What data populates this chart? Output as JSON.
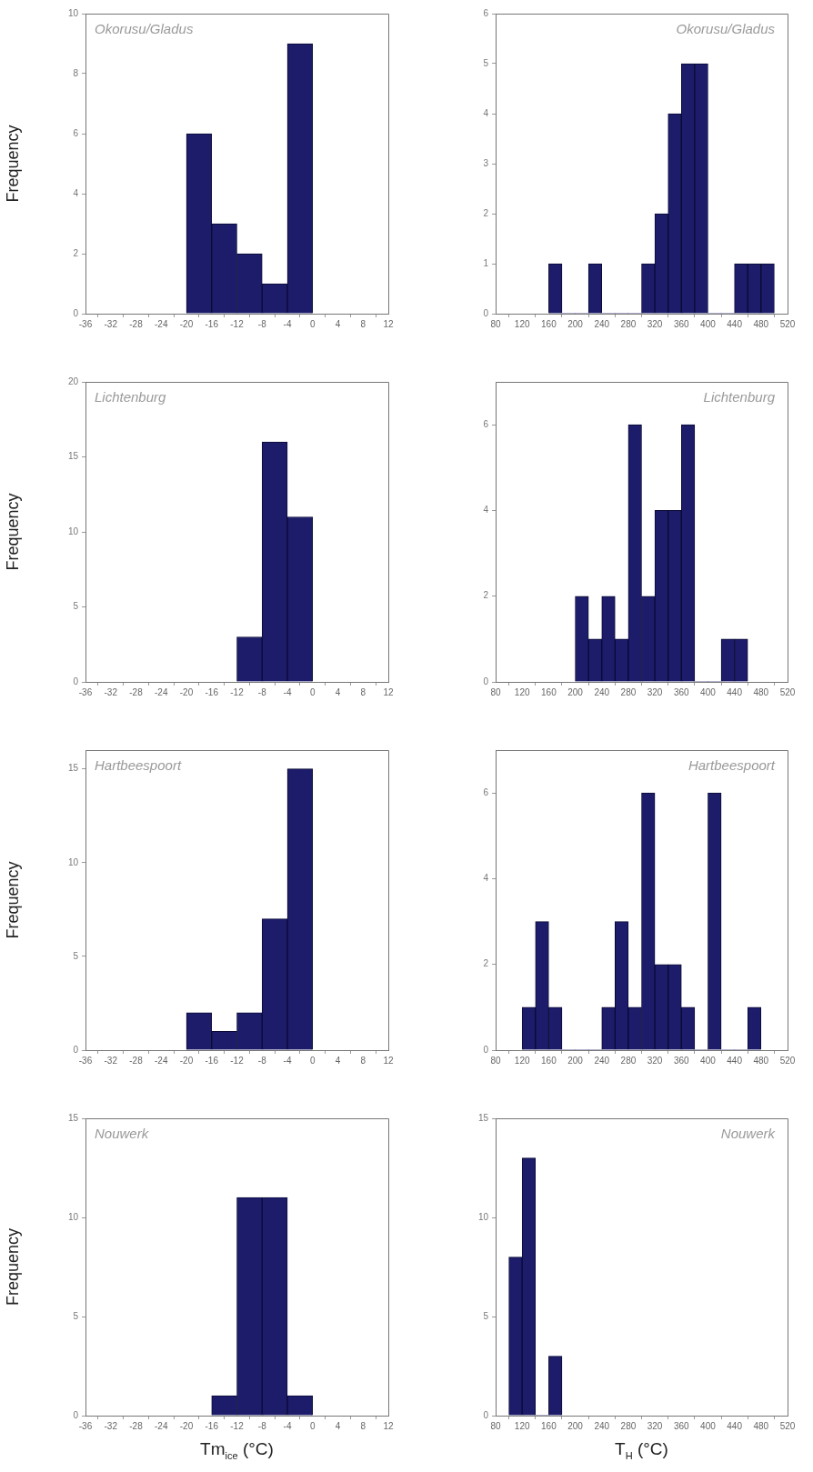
{
  "chart_data": [
    {
      "type": "histogram",
      "annotations": [
        "Okorusu/Gladus"
      ],
      "ylabel": "Frequency",
      "bins": [
        -20,
        -16,
        -12,
        -8,
        -4,
        0
      ],
      "values": [
        6,
        3,
        2,
        1,
        9
      ],
      "color": "#1c1c6b",
      "xlim": [
        -36,
        12
      ],
      "xticks": [
        -36,
        -32,
        -28,
        -24,
        -20,
        -16,
        -12,
        -8,
        -4,
        0,
        4,
        8,
        12
      ],
      "ylim": [
        0,
        10
      ],
      "yticks": [
        0,
        2,
        4,
        6,
        8,
        10
      ]
    },
    {
      "type": "histogram",
      "annotations": [
        "Okorusu/Gladus"
      ],
      "bins": [
        160,
        180,
        200,
        220,
        240,
        260,
        280,
        300,
        320,
        340,
        360,
        380,
        400,
        420,
        440,
        460,
        480,
        500
      ],
      "values": [
        1,
        0,
        0,
        1,
        0,
        0,
        0,
        1,
        2,
        4,
        5,
        5,
        0,
        0,
        1,
        1,
        1
      ],
      "color": "#1c1c6b",
      "xlim": [
        80,
        520
      ],
      "xticks": [
        80,
        120,
        160,
        200,
        240,
        280,
        320,
        360,
        400,
        440,
        480,
        520
      ],
      "ylim": [
        0,
        6
      ],
      "yticks": [
        0,
        1,
        2,
        3,
        4,
        5,
        6
      ]
    },
    {
      "type": "histogram",
      "annotations": [
        "Lichtenburg"
      ],
      "ylabel": "Frequency",
      "bins": [
        -12,
        -8,
        -4,
        0
      ],
      "values": [
        3,
        16,
        11
      ],
      "color": "#1c1c6b",
      "xlim": [
        -36,
        12
      ],
      "xticks": [
        -36,
        -32,
        -28,
        -24,
        -20,
        -16,
        -12,
        -8,
        -4,
        0,
        4,
        8,
        12
      ],
      "ylim": [
        0,
        20
      ],
      "yticks": [
        0,
        5,
        10,
        15,
        20
      ]
    },
    {
      "type": "histogram",
      "annotations": [
        "Lichtenburg"
      ],
      "bins": [
        200,
        220,
        240,
        260,
        280,
        300,
        320,
        340,
        360,
        380,
        400,
        420,
        440,
        460
      ],
      "values": [
        2,
        1,
        2,
        1,
        6,
        2,
        4,
        4,
        6,
        0,
        0,
        1,
        1
      ],
      "color": "#1c1c6b",
      "xlim": [
        80,
        520
      ],
      "xticks": [
        80,
        120,
        160,
        200,
        240,
        280,
        320,
        360,
        400,
        440,
        480,
        520
      ],
      "ylim": [
        0,
        7
      ],
      "yticks": [
        0,
        2,
        4,
        6
      ]
    },
    {
      "type": "histogram",
      "annotations": [
        "Hartbeespoort"
      ],
      "ylabel": "Frequency",
      "bins": [
        -20,
        -16,
        -12,
        -8,
        -4,
        0
      ],
      "values": [
        2,
        1,
        2,
        7,
        15
      ],
      "color": "#1c1c6b",
      "xlim": [
        -36,
        12
      ],
      "xticks": [
        -36,
        -32,
        -28,
        -24,
        -20,
        -16,
        -12,
        -8,
        -4,
        0,
        4,
        8,
        12
      ],
      "ylim": [
        0,
        16
      ],
      "yticks": [
        0,
        5,
        10,
        15
      ]
    },
    {
      "type": "histogram",
      "annotations": [
        "Hartbeespoort"
      ],
      "bins": [
        120,
        140,
        160,
        180,
        200,
        220,
        240,
        260,
        280,
        300,
        320,
        340,
        360,
        380,
        400,
        420,
        440,
        460,
        480
      ],
      "values": [
        1,
        3,
        1,
        0,
        0,
        0,
        1,
        3,
        1,
        6,
        2,
        2,
        1,
        0,
        6,
        0,
        0,
        1
      ],
      "color": "#1c1c6b",
      "xlim": [
        80,
        520
      ],
      "xticks": [
        80,
        120,
        160,
        200,
        240,
        280,
        320,
        360,
        400,
        440,
        480,
        520
      ],
      "ylim": [
        0,
        7
      ],
      "yticks": [
        0,
        2,
        4,
        6
      ]
    },
    {
      "type": "histogram",
      "annotations": [
        "Nouwerk"
      ],
      "ylabel": "Frequency",
      "xlabel": "Tm$_{ice}$ (°C)",
      "bins": [
        -16,
        -12,
        -8,
        -4,
        0
      ],
      "values": [
        1,
        11,
        11,
        1
      ],
      "color": "#1c1c6b",
      "xlim": [
        -36,
        12
      ],
      "xticks": [
        -36,
        -32,
        -28,
        -24,
        -20,
        -16,
        -12,
        -8,
        -4,
        0,
        4,
        8,
        12
      ],
      "ylim": [
        0,
        15
      ],
      "yticks": [
        0,
        5,
        10,
        15
      ]
    },
    {
      "type": "histogram",
      "annotations": [
        "Nouwerk"
      ],
      "xlabel": "T$_{H}$ (°C)",
      "bins": [
        100,
        120,
        140,
        160,
        180
      ],
      "values": [
        8,
        13,
        0,
        3
      ],
      "color": "#1c1c6b",
      "xlim": [
        80,
        520
      ],
      "xticks": [
        80,
        120,
        160,
        200,
        240,
        280,
        320,
        360,
        400,
        440,
        480,
        520
      ],
      "ylim": [
        0,
        15
      ],
      "yticks": [
        0,
        5,
        10,
        15
      ]
    }
  ]
}
